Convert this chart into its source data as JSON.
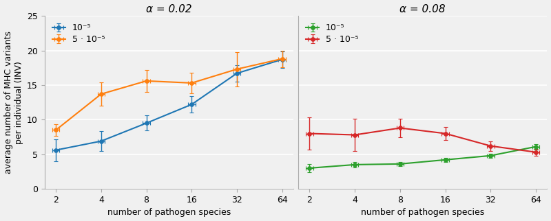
{
  "x": [
    2,
    4,
    8,
    16,
    32,
    64
  ],
  "left_panel": {
    "title": "α = 0.02",
    "series": [
      {
        "label": "10⁻⁵",
        "color": "#1f77b4",
        "y": [
          5.6,
          6.9,
          9.5,
          12.2,
          16.7,
          18.7
        ],
        "yerr_low": [
          1.6,
          1.4,
          1.1,
          1.2,
          1.2,
          1.2
        ],
        "yerr_high": [
          1.6,
          1.4,
          1.1,
          1.2,
          1.2,
          1.2
        ],
        "xerr": [
          0.08,
          0.08,
          0.08,
          0.08,
          0.08,
          0.08
        ]
      },
      {
        "label": "5 · 10⁻⁵",
        "color": "#ff7f0e",
        "y": [
          8.5,
          13.7,
          15.6,
          15.3,
          17.3,
          18.8
        ],
        "yerr_low": [
          0.8,
          1.7,
          1.6,
          1.5,
          2.5,
          1.2
        ],
        "yerr_high": [
          0.8,
          1.7,
          1.6,
          1.5,
          2.5,
          1.2
        ],
        "xerr": [
          0.08,
          0.08,
          0.08,
          0.08,
          0.08,
          0.08
        ]
      }
    ]
  },
  "right_panel": {
    "title": "α = 0.08",
    "series": [
      {
        "label": "10⁻⁵",
        "color": "#2ca02c",
        "y": [
          3.0,
          3.5,
          3.6,
          4.2,
          4.8,
          6.1
        ],
        "yerr_low": [
          0.6,
          0.4,
          0.3,
          0.3,
          0.3,
          0.4
        ],
        "yerr_high": [
          0.6,
          0.4,
          0.3,
          0.3,
          0.3,
          0.4
        ],
        "xerr": [
          0.08,
          0.08,
          0.08,
          0.08,
          0.08,
          0.08
        ]
      },
      {
        "label": "5 · 10⁻⁵",
        "color": "#d62728",
        "y": [
          8.0,
          7.8,
          8.8,
          8.0,
          6.2,
          5.3
        ],
        "yerr_low": [
          2.3,
          2.3,
          1.3,
          0.9,
          0.7,
          0.5
        ],
        "yerr_high": [
          2.3,
          2.3,
          1.3,
          0.9,
          0.7,
          0.5
        ],
        "xerr": [
          0.08,
          0.08,
          0.08,
          0.08,
          0.08,
          0.08
        ]
      }
    ]
  },
  "ylabel": "average number of MHC variants\nper individual (INV)",
  "xlabel": "number of pathogen species",
  "ylim": [
    0,
    25
  ],
  "yticks": [
    0,
    5,
    10,
    15,
    20,
    25
  ],
  "xtick_labels": [
    "2",
    "4",
    "8",
    "16",
    "32",
    "64"
  ],
  "background_color": "#f0f0f0",
  "grid_color": "#ffffff",
  "marker": "o",
  "markersize": 4,
  "linewidth": 1.5,
  "capsize": 2.5,
  "elinewidth": 1.0
}
